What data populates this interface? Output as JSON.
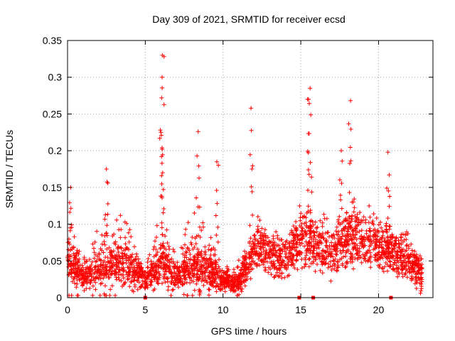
{
  "chart_data": {
    "type": "scatter",
    "title": "Day 309 of 2021, SRMTID for receiver ecsd",
    "xlabel": "GPS time / hours",
    "ylabel": "SRMTID / TECUs",
    "xlim": [
      0,
      23.5
    ],
    "ylim": [
      0,
      0.35
    ],
    "x_ticks": [
      0,
      5,
      10,
      15,
      20
    ],
    "x_tick_labels": [
      "0",
      "5",
      "10",
      "15",
      "20"
    ],
    "y_ticks": [
      0,
      0.05,
      0.1,
      0.15,
      0.2,
      0.25,
      0.3,
      0.35
    ],
    "y_tick_labels": [
      "0",
      "0.05",
      "0.1",
      "0.15",
      "0.2",
      "0.25",
      "0.3",
      "0.35"
    ],
    "grid": true,
    "marker": "+",
    "color": "#ff0000",
    "series": [
      {
        "name": "SRMTID",
        "peaks": [
          {
            "x": 0.2,
            "y": 0.15
          },
          {
            "x": 2.5,
            "y": 0.175
          },
          {
            "x": 6.1,
            "y": 0.33
          },
          {
            "x": 6.08,
            "y": 0.3
          },
          {
            "x": 6.05,
            "y": 0.272
          },
          {
            "x": 8.4,
            "y": 0.226
          },
          {
            "x": 9.6,
            "y": 0.185
          },
          {
            "x": 11.8,
            "y": 0.258
          },
          {
            "x": 15.6,
            "y": 0.285
          },
          {
            "x": 15.5,
            "y": 0.27
          },
          {
            "x": 17.6,
            "y": 0.2
          },
          {
            "x": 18.2,
            "y": 0.268
          },
          {
            "x": 20.6,
            "y": 0.198
          },
          {
            "x": 22.7,
            "y": 0.006
          }
        ],
        "envelope": [
          {
            "x": 0.0,
            "lo": 0.02,
            "center": 0.05,
            "hi": 0.13
          },
          {
            "x": 1.0,
            "lo": 0.015,
            "center": 0.03,
            "hi": 0.06
          },
          {
            "x": 2.0,
            "lo": 0.015,
            "center": 0.035,
            "hi": 0.1
          },
          {
            "x": 3.0,
            "lo": 0.02,
            "center": 0.05,
            "hi": 0.13
          },
          {
            "x": 4.0,
            "lo": 0.015,
            "center": 0.045,
            "hi": 0.1
          },
          {
            "x": 5.0,
            "lo": 0.01,
            "center": 0.025,
            "hi": 0.05
          },
          {
            "x": 6.0,
            "lo": 0.02,
            "center": 0.05,
            "hi": 0.12
          },
          {
            "x": 7.0,
            "lo": 0.01,
            "center": 0.03,
            "hi": 0.06
          },
          {
            "x": 8.0,
            "lo": 0.015,
            "center": 0.045,
            "hi": 0.12
          },
          {
            "x": 9.0,
            "lo": 0.015,
            "center": 0.04,
            "hi": 0.1
          },
          {
            "x": 10.0,
            "lo": 0.008,
            "center": 0.025,
            "hi": 0.05
          },
          {
            "x": 11.0,
            "lo": 0.008,
            "center": 0.02,
            "hi": 0.05
          },
          {
            "x": 12.0,
            "lo": 0.03,
            "center": 0.065,
            "hi": 0.12
          },
          {
            "x": 13.0,
            "lo": 0.03,
            "center": 0.06,
            "hi": 0.11
          },
          {
            "x": 14.0,
            "lo": 0.02,
            "center": 0.055,
            "hi": 0.1
          },
          {
            "x": 15.0,
            "lo": 0.04,
            "center": 0.08,
            "hi": 0.13
          },
          {
            "x": 16.0,
            "lo": 0.03,
            "center": 0.07,
            "hi": 0.12
          },
          {
            "x": 17.0,
            "lo": 0.03,
            "center": 0.06,
            "hi": 0.11
          },
          {
            "x": 18.0,
            "lo": 0.04,
            "center": 0.08,
            "hi": 0.14
          },
          {
            "x": 19.0,
            "lo": 0.04,
            "center": 0.08,
            "hi": 0.13
          },
          {
            "x": 20.0,
            "lo": 0.04,
            "center": 0.075,
            "hi": 0.12
          },
          {
            "x": 21.0,
            "lo": 0.03,
            "center": 0.06,
            "hi": 0.11
          },
          {
            "x": 22.0,
            "lo": 0.02,
            "center": 0.05,
            "hi": 0.1
          },
          {
            "x": 22.8,
            "lo": 0.02,
            "center": 0.04,
            "hi": 0.09
          }
        ],
        "zero_markers_x": [
          5.0,
          14.9,
          15.8,
          20.8
        ]
      }
    ]
  }
}
